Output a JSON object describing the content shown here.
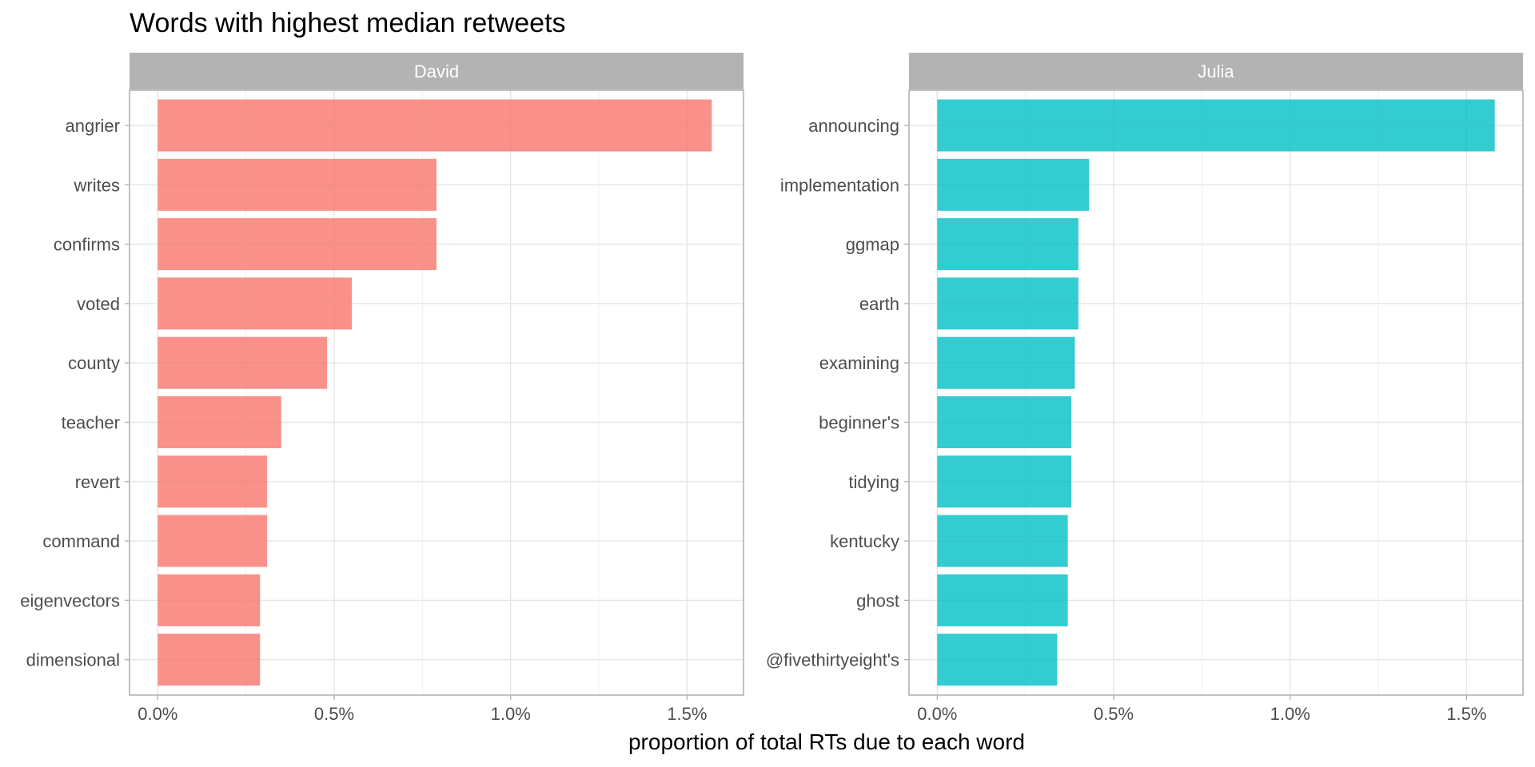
{
  "chart_data": {
    "type": "bar",
    "orientation": "horizontal",
    "title": "Words with highest median retweets",
    "xlabel": "proportion of total RTs due to each word",
    "ylabel": "",
    "xlim": [
      -0.0008,
      0.0166
    ],
    "x_ticks": [
      0,
      0.005,
      0.01,
      0.015
    ],
    "x_tick_labels": [
      "0.0%",
      "0.5%",
      "1.0%",
      "1.5%"
    ],
    "grid": true,
    "legend": "none",
    "panels": [
      {
        "name": "David",
        "color": "#F8766D",
        "categories": [
          "angrier",
          "writes",
          "confirms",
          "voted",
          "county",
          "teacher",
          "revert",
          "command",
          "eigenvectors",
          "dimensional"
        ],
        "values": [
          0.0157,
          0.0079,
          0.0079,
          0.0055,
          0.0048,
          0.0035,
          0.0031,
          0.0031,
          0.0029,
          0.0029
        ]
      },
      {
        "name": "Julia",
        "color": "#00BFC4",
        "categories": [
          "announcing",
          "implementation",
          "ggmap",
          "earth",
          "examining",
          "beginner's",
          "tidying",
          "kentucky",
          "ghost",
          "@fivethirtyeight's"
        ],
        "values": [
          0.0158,
          0.0043,
          0.004,
          0.004,
          0.0039,
          0.0038,
          0.0038,
          0.0037,
          0.0037,
          0.0034
        ]
      }
    ]
  }
}
